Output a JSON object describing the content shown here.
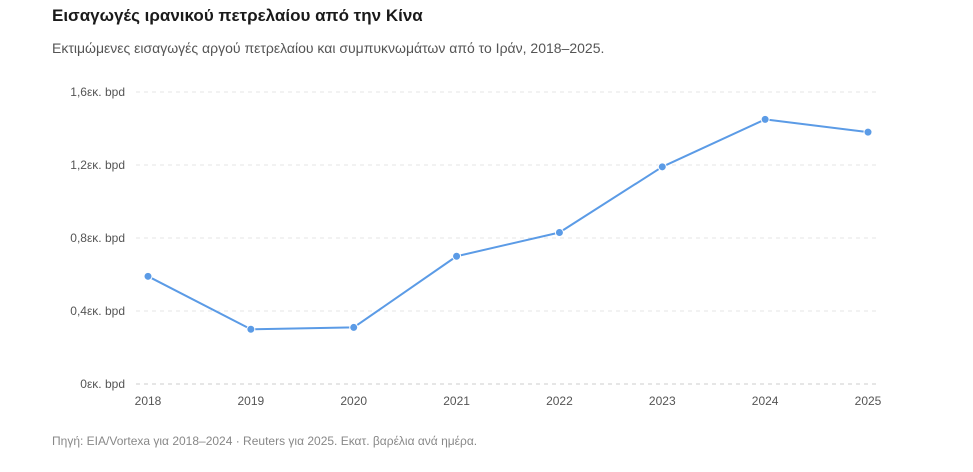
{
  "header": {
    "title": "Εισαγωγές ιρανικού πετρελαίου από την Κίνα",
    "subtitle": "Εκτιμώμενες εισαγωγές αργού πετρελαίου και συμπυκνωμάτων από το Ιράν, 2018–2025."
  },
  "footer": {
    "source": "Πηγή: EIA/Vortexa για 2018–2024 · Reuters για 2025. Εκατ. βαρέλια ανά ημέρα."
  },
  "chart_data": {
    "type": "line",
    "title": "Εισαγωγές ιρανικού πετρελαίου από την Κίνα",
    "subtitle": "Εκτιμώμενες εισαγωγές αργού πετρελαίου και συμπυκνωμάτων από το Ιράν, 2018–2025.",
    "xlabel": "",
    "ylabel": "",
    "x": [
      "2018",
      "2019",
      "2020",
      "2021",
      "2022",
      "2023",
      "2024",
      "2025"
    ],
    "series": [
      {
        "values": [
          0.59,
          0.3,
          0.31,
          0.7,
          0.83,
          1.19,
          1.45,
          1.38
        ],
        "color": "#5b9be6"
      }
    ],
    "ylim": [
      0,
      1.6
    ],
    "yticks": [
      {
        "value": 0,
        "label": "0εκ. bpd"
      },
      {
        "value": 0.4,
        "label": "0,4εκ. bpd"
      },
      {
        "value": 0.8,
        "label": "0,8εκ. bpd"
      },
      {
        "value": 1.2,
        "label": "1,2εκ. bpd"
      },
      {
        "value": 1.6,
        "label": "1,6εκ. bpd"
      }
    ],
    "grid": true,
    "legend": "none"
  }
}
